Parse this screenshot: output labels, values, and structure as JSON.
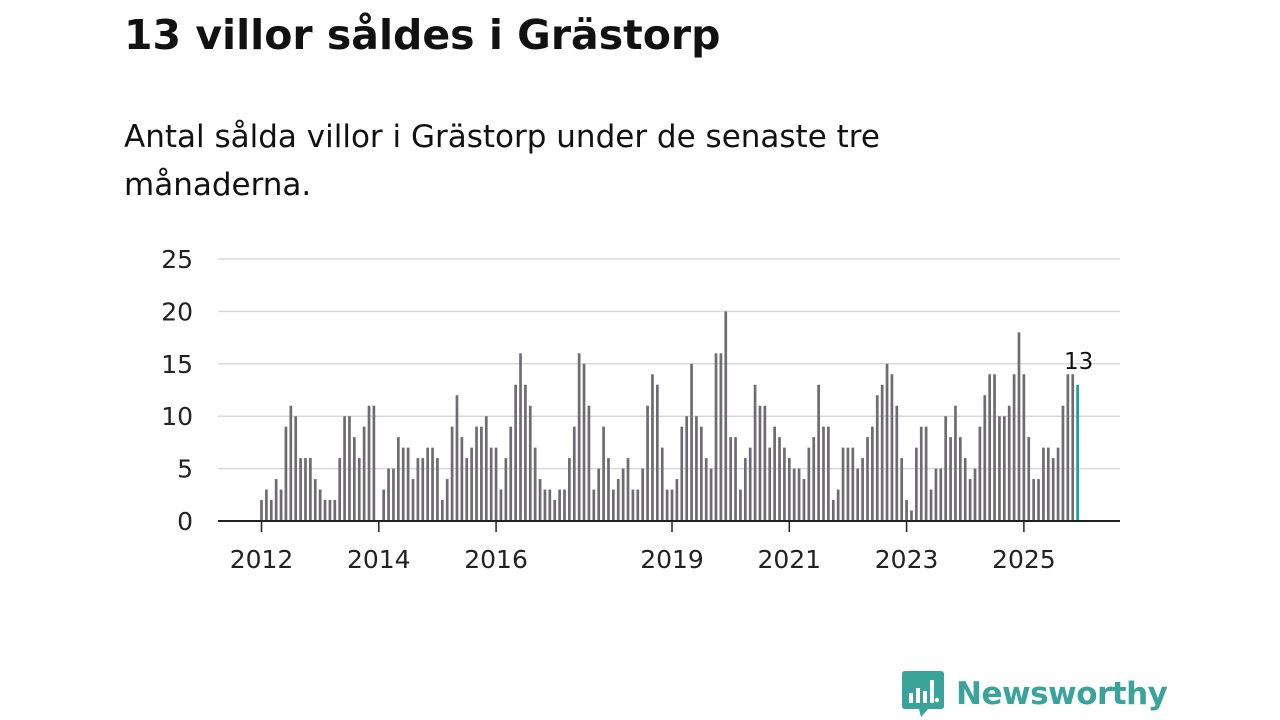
{
  "title": "13 villor såldes i Grästorp",
  "subtitle": "Antal sålda villor i Grästorp under de senaste tre månaderna.",
  "brand": {
    "name": "Newsworthy",
    "icon": "bar-chart-speech-bubble-icon",
    "color": "#3aa39a"
  },
  "colors": {
    "bar": "#6e6c72",
    "highlight": "#1a9e96",
    "grid": "#d9d9d9",
    "axis": "#222222"
  },
  "chart_data": {
    "type": "bar",
    "title": "13 villor såldes i Grästorp",
    "xlabel": "",
    "ylabel": "",
    "ylim": [
      0,
      25
    ],
    "yticks": [
      0,
      5,
      10,
      15,
      20,
      25
    ],
    "grid": true,
    "start": {
      "year": 2012,
      "month": 1
    },
    "xticks": [
      {
        "year": 2012,
        "label": "2012"
      },
      {
        "year": 2014,
        "label": "2014"
      },
      {
        "year": 2016,
        "label": "2016"
      },
      {
        "year": 2019,
        "label": "2019"
      },
      {
        "year": 2021,
        "label": "2021"
      },
      {
        "year": 2023,
        "label": "2023"
      },
      {
        "year": 2025,
        "label": "2025"
      }
    ],
    "values": [
      2,
      3,
      2,
      4,
      3,
      9,
      11,
      10,
      6,
      6,
      6,
      4,
      3,
      2,
      2,
      2,
      6,
      10,
      10,
      8,
      6,
      9,
      11,
      11,
      0,
      3,
      5,
      5,
      8,
      7,
      7,
      4,
      6,
      6,
      7,
      7,
      6,
      2,
      4,
      9,
      12,
      8,
      6,
      7,
      9,
      9,
      10,
      7,
      7,
      3,
      6,
      9,
      13,
      16,
      13,
      11,
      7,
      4,
      3,
      3,
      2,
      3,
      3,
      6,
      9,
      16,
      15,
      11,
      3,
      5,
      9,
      6,
      3,
      4,
      5,
      6,
      3,
      3,
      5,
      11,
      14,
      13,
      7,
      3,
      3,
      4,
      9,
      10,
      15,
      10,
      9,
      6,
      5,
      16,
      16,
      20,
      8,
      8,
      3,
      6,
      7,
      13,
      11,
      11,
      7,
      9,
      8,
      7,
      6,
      5,
      5,
      4,
      7,
      8,
      13,
      9,
      9,
      2,
      3,
      7,
      7,
      7,
      5,
      6,
      8,
      9,
      12,
      13,
      15,
      14,
      11,
      6,
      2,
      1,
      7,
      9,
      9,
      3,
      5,
      5,
      10,
      8,
      11,
      8,
      6,
      4,
      5,
      9,
      12,
      14,
      14,
      10,
      10,
      11,
      14,
      18,
      14,
      8,
      4,
      4,
      7,
      7,
      6,
      7,
      11,
      14,
      14,
      13
    ],
    "highlight": {
      "value": 13,
      "label": "13"
    }
  }
}
